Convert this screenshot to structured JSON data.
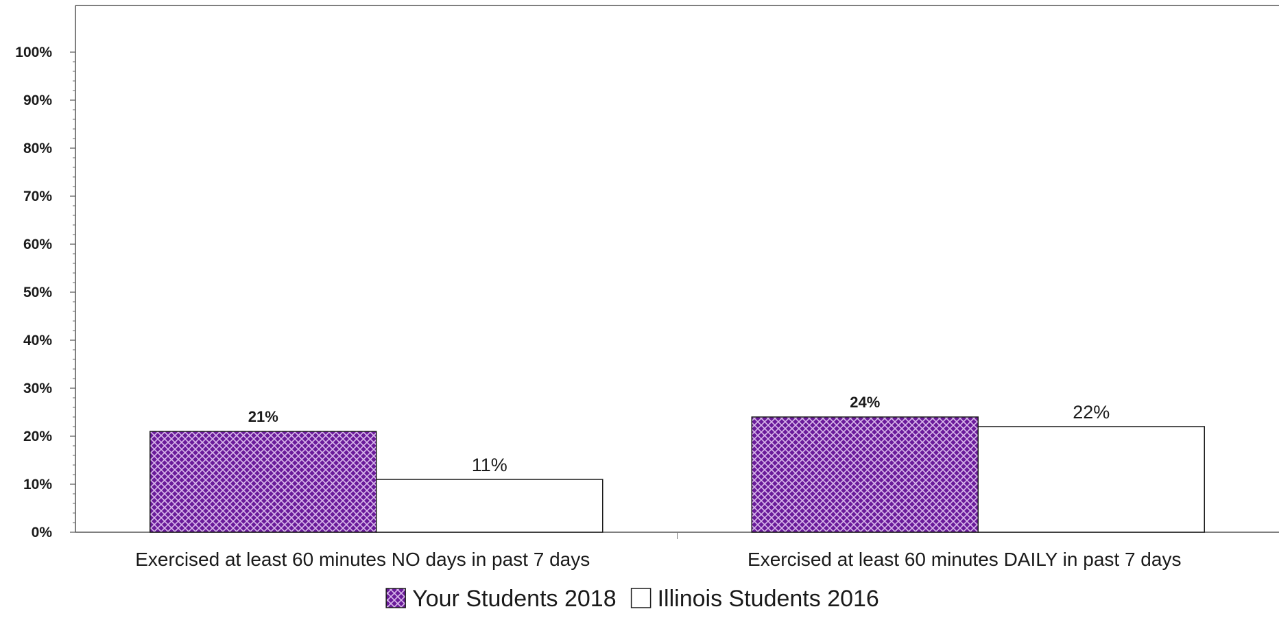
{
  "chart_data": {
    "type": "bar",
    "categories": [
      "Exercised at least 60 minutes NO days in past 7 days",
      "Exercised at least 60 minutes DAILY in past 7 days"
    ],
    "series": [
      {
        "name": "Your Students 2018",
        "values": [
          21,
          24
        ],
        "labels": [
          "21%",
          "24%"
        ],
        "color": "#6a1b9a",
        "pattern": "crosshatch"
      },
      {
        "name": "Illinois Students 2016",
        "values": [
          11,
          22
        ],
        "labels": [
          "11%",
          "22%"
        ],
        "color": "#ffffff"
      }
    ],
    "ylim": [
      0,
      100
    ],
    "yticks": [
      "0%",
      "10%",
      "20%",
      "30%",
      "40%",
      "50%",
      "60%",
      "70%",
      "80%",
      "90%",
      "100%"
    ],
    "title": "",
    "xlabel": "",
    "ylabel": "",
    "grid": false,
    "legend_position": "bottom"
  }
}
